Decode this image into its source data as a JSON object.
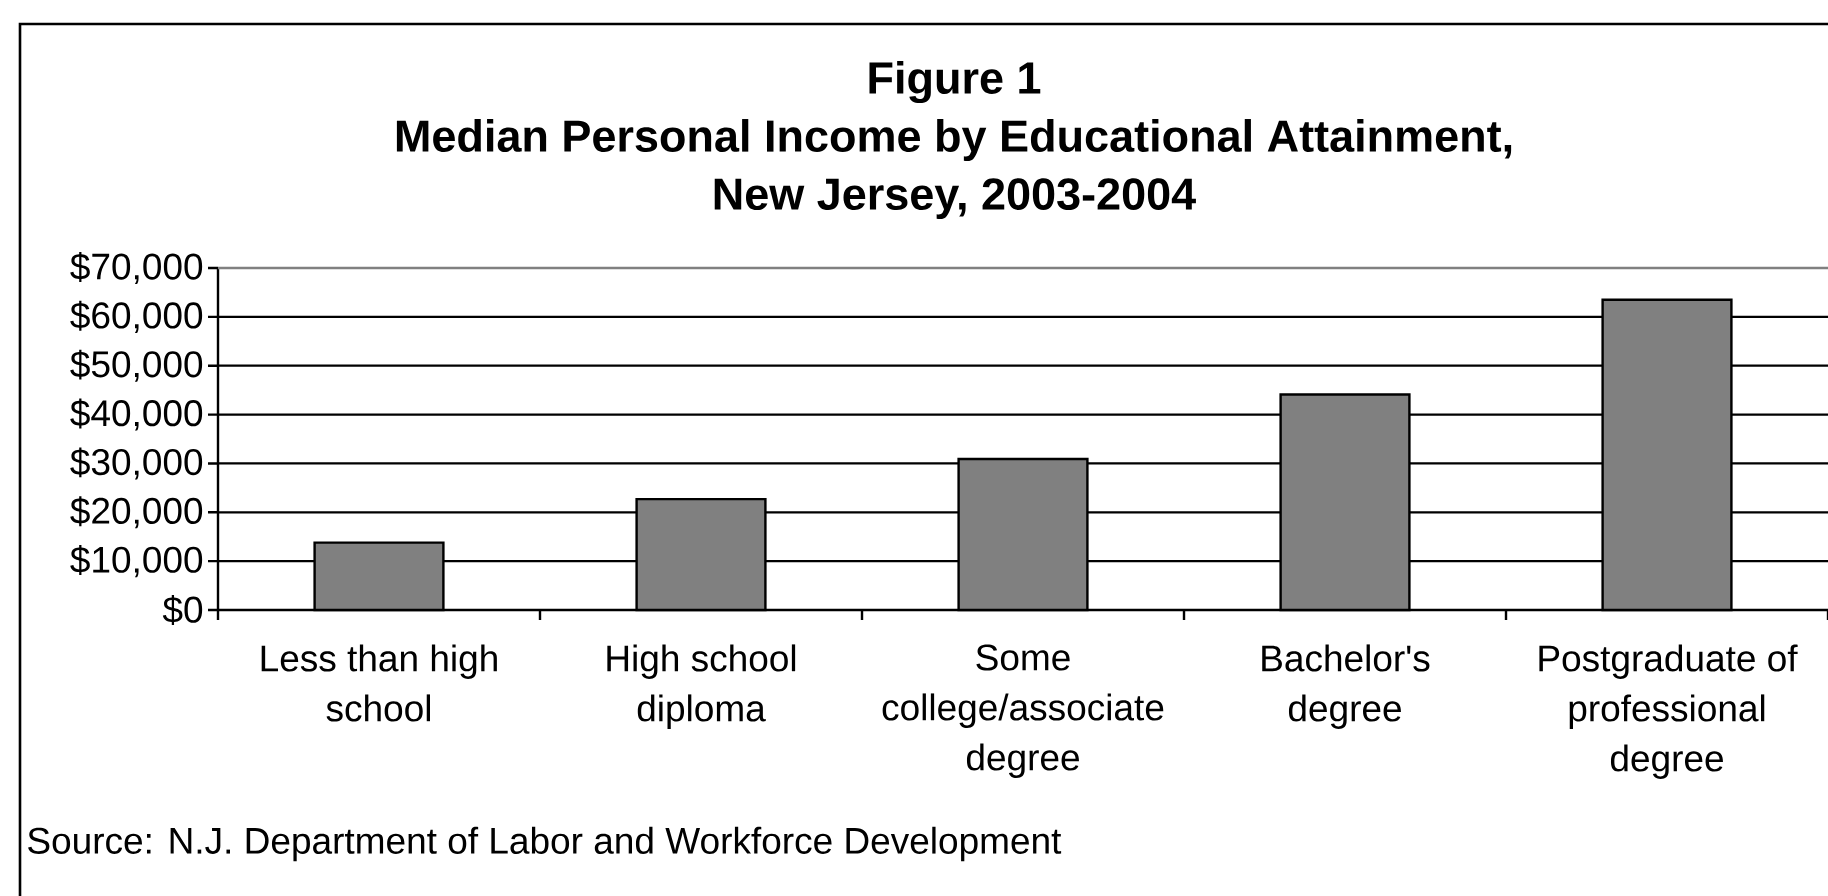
{
  "chart_data": {
    "type": "bar",
    "title": "Figure 1",
    "subtitle": "Median Personal Income by Educational Attainment, New Jersey, 2003-2004",
    "categories": [
      "Less than high school",
      "High school diploma",
      "Some college/associate degree",
      "Bachelor's degree",
      "Postgraduate of professional degree"
    ],
    "values": [
      13800,
      22700,
      30900,
      44100,
      63500
    ],
    "color": "#808080",
    "ylim": [
      0,
      70000
    ],
    "yticks": [
      {
        "value": 0,
        "label": "$0"
      },
      {
        "value": 10000,
        "label": "$10,000"
      },
      {
        "value": 20000,
        "label": "$20,000"
      },
      {
        "value": 30000,
        "label": "$30,000"
      },
      {
        "value": 40000,
        "label": "$40,000"
      },
      {
        "value": 50000,
        "label": "$50,000"
      },
      {
        "value": 60000,
        "label": "$60,000"
      },
      {
        "value": 70000,
        "label": "$70,000"
      }
    ],
    "grid": "y",
    "annotations": [
      "Source: N.J. Department of Labor and Workforce Development"
    ]
  }
}
